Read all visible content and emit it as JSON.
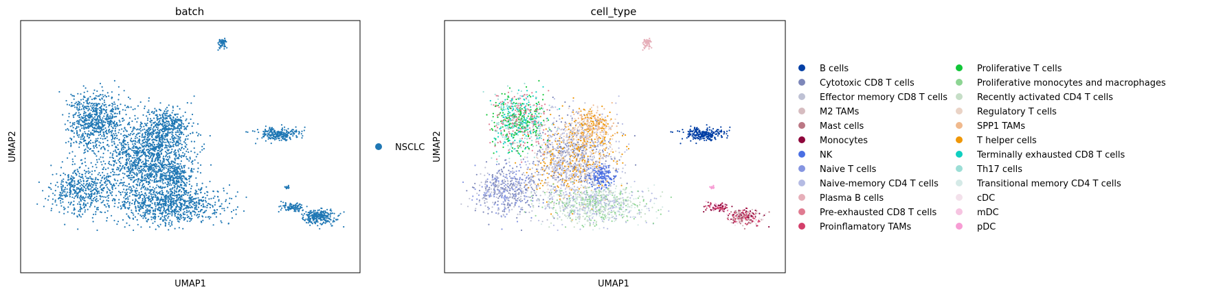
{
  "chart_data": [
    {
      "type": "scatter",
      "title": "batch",
      "xlabel": "UMAP1",
      "ylabel": "UMAP2",
      "grid": false,
      "ticks": false,
      "legend_placement": "right",
      "series": [
        {
          "name": "NSCLC",
          "color": "#1f77b4"
        }
      ]
    },
    {
      "type": "scatter",
      "title": "cell_type",
      "xlabel": "UMAP1",
      "ylabel": "UMAP2",
      "grid": false,
      "ticks": false,
      "legend_placement": "right",
      "legend_columns": 2,
      "series": [
        {
          "name": "B cells",
          "color": "#023fa5"
        },
        {
          "name": "Cytotoxic CD8 T cells",
          "color": "#7d87b9"
        },
        {
          "name": "Effector memory CD8 T cells",
          "color": "#bec1d4"
        },
        {
          "name": "M2 TAMs",
          "color": "#d6bcc0"
        },
        {
          "name": "Mast cells",
          "color": "#bb7784"
        },
        {
          "name": "Monocytes",
          "color": "#8e063b"
        },
        {
          "name": "NK",
          "color": "#4a6fe3"
        },
        {
          "name": "Naive T cells",
          "color": "#8595e1"
        },
        {
          "name": "Naive-memory CD4 T cells",
          "color": "#b5bbe3"
        },
        {
          "name": "Plasma B cells",
          "color": "#e6afb9"
        },
        {
          "name": "Pre-exhausted CD8 T cells",
          "color": "#e07b91"
        },
        {
          "name": "Proinflamatory TAMs",
          "color": "#d33f6a"
        },
        {
          "name": "Proliferative T cells",
          "color": "#11c638"
        },
        {
          "name": "Proliferative monocytes and macrophages",
          "color": "#8dd593"
        },
        {
          "name": "Recently activated CD4 T cells",
          "color": "#c6dec7"
        },
        {
          "name": "Regulatory T cells",
          "color": "#ead3c6"
        },
        {
          "name": "SPP1 TAMs",
          "color": "#f0b98d"
        },
        {
          "name": "T helper cells",
          "color": "#ef9708"
        },
        {
          "name": "Terminally exhausted CD8 T cells",
          "color": "#0fcfc0"
        },
        {
          "name": "Th17 cells",
          "color": "#9cded6"
        },
        {
          "name": "Transitional memory CD4 T cells",
          "color": "#d5eae7"
        },
        {
          "name": "cDC",
          "color": "#f3e1eb"
        },
        {
          "name": "mDC",
          "color": "#f6c4e1"
        },
        {
          "name": "pDC",
          "color": "#f79cd4"
        }
      ]
    }
  ]
}
